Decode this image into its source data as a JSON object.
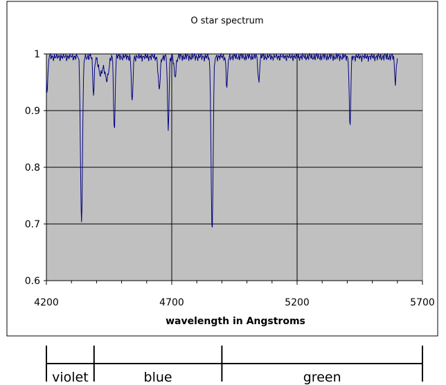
{
  "chart_data": {
    "type": "line",
    "title": "O star spectrum",
    "xlabel": "wavelength in Angstroms",
    "ylabel": "",
    "xlim": [
      4200,
      5700
    ],
    "ylim": [
      0.6,
      1.0
    ],
    "xticks": [
      4200,
      4700,
      5200,
      5700
    ],
    "yticks": [
      0.6,
      0.7,
      0.8,
      0.9,
      1.0
    ],
    "ytick_labels": [
      "0.6",
      "0.7",
      "0.8",
      "0.9",
      "1"
    ],
    "grid": true,
    "plot_background": "#c0c0c0",
    "line_color": "#000080",
    "series": [
      {
        "continuum": 0.995,
        "lines": [
          {
            "x": 4203,
            "depth": 0.06,
            "width": 3
          },
          {
            "x": 4340,
            "depth": 0.295,
            "width": 4
          },
          {
            "x": 4388,
            "depth": 0.065,
            "width": 3
          },
          {
            "x": 4415,
            "depth": 0.03,
            "width": 8
          },
          {
            "x": 4440,
            "depth": 0.04,
            "width": 8
          },
          {
            "x": 4471,
            "depth": 0.132,
            "width": 3
          },
          {
            "x": 4542,
            "depth": 0.085,
            "width": 3
          },
          {
            "x": 4650,
            "depth": 0.06,
            "width": 4
          },
          {
            "x": 4686,
            "depth": 0.128,
            "width": 3
          },
          {
            "x": 4713,
            "depth": 0.035,
            "width": 4
          },
          {
            "x": 4861,
            "depth": 0.31,
            "width": 4
          },
          {
            "x": 4920,
            "depth": 0.055,
            "width": 3
          },
          {
            "x": 5047,
            "depth": 0.045,
            "width": 3
          },
          {
            "x": 5411,
            "depth": 0.125,
            "width": 3
          },
          {
            "x": 5592,
            "depth": 0.045,
            "width": 3
          }
        ]
      }
    ]
  },
  "bands": [
    {
      "label": "violet",
      "from": 4200,
      "to": 4390
    },
    {
      "label": "blue",
      "from": 4390,
      "to": 4900
    },
    {
      "label": "green",
      "from": 4900,
      "to": 5700
    }
  ]
}
